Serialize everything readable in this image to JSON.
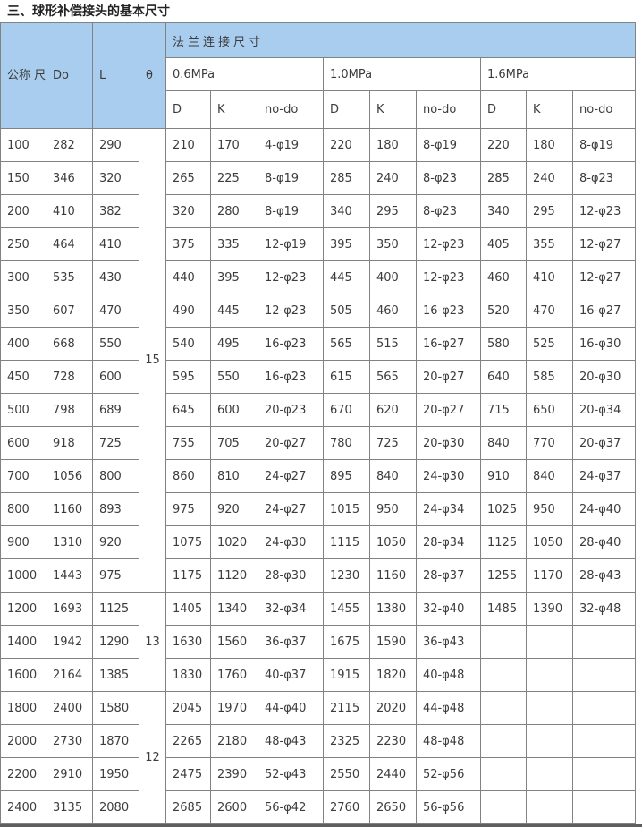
{
  "title": "三、球形补偿接头的基本尺寸",
  "colors": {
    "header_bg": "#a9cdee",
    "grid_border": "#828282",
    "bottom_rule": "#5e5e5e",
    "text": "#3c3c3c"
  },
  "table": {
    "corner_headers": [
      {
        "key": "dn",
        "label": "公称\n尺寸\nDN"
      },
      {
        "key": "do",
        "label": "Do"
      },
      {
        "key": "l",
        "label": "L"
      },
      {
        "key": "theta",
        "label": "θ"
      }
    ],
    "flange_header": "法兰连接尺寸",
    "pressure_groups": [
      "0.6MPa",
      "1.0MPa",
      "1.6MPa"
    ],
    "sub_headers": [
      "D",
      "K",
      "no-do"
    ],
    "theta_spans": [
      {
        "value": "15",
        "row_count": 14
      },
      {
        "value": "13",
        "row_count": 3
      },
      {
        "value": "12",
        "row_count": 4
      }
    ],
    "rows": [
      [
        "100",
        "282",
        "290",
        "210",
        "170",
        "4-φ19",
        "220",
        "180",
        "8-φ19",
        "220",
        "180",
        "8-φ19"
      ],
      [
        "150",
        "346",
        "320",
        "265",
        "225",
        "8-φ19",
        "285",
        "240",
        "8-φ23",
        "285",
        "240",
        "8-φ23"
      ],
      [
        "200",
        "410",
        "382",
        "320",
        "280",
        "8-φ19",
        "340",
        "295",
        "8-φ23",
        "340",
        "295",
        "12-φ23"
      ],
      [
        "250",
        "464",
        "410",
        "375",
        "335",
        "12-φ19",
        "395",
        "350",
        "12-φ23",
        "405",
        "355",
        "12-φ27"
      ],
      [
        "300",
        "535",
        "430",
        "440",
        "395",
        "12-φ23",
        "445",
        "400",
        "12-φ23",
        "460",
        "410",
        "12-φ27"
      ],
      [
        "350",
        "607",
        "470",
        "490",
        "445",
        "12-φ23",
        "505",
        "460",
        "16-φ23",
        "520",
        "470",
        "16-φ27"
      ],
      [
        "400",
        "668",
        "550",
        "540",
        "495",
        "16-φ23",
        "565",
        "515",
        "16-φ27",
        "580",
        "525",
        "16-φ30"
      ],
      [
        "450",
        "728",
        "600",
        "595",
        "550",
        "16-φ23",
        "615",
        "565",
        "20-φ27",
        "640",
        "585",
        "20-φ30"
      ],
      [
        "500",
        "798",
        "689",
        "645",
        "600",
        "20-φ23",
        "670",
        "620",
        "20-φ27",
        "715",
        "650",
        "20-φ34"
      ],
      [
        "600",
        "918",
        "725",
        "755",
        "705",
        "20-φ27",
        "780",
        "725",
        "20-φ30",
        "840",
        "770",
        "20-φ37"
      ],
      [
        "700",
        "1056",
        "800",
        "860",
        "810",
        "24-φ27",
        "895",
        "840",
        "24-φ30",
        "910",
        "840",
        "24-φ37"
      ],
      [
        "800",
        "1160",
        "893",
        "975",
        "920",
        "24-φ27",
        "1015",
        "950",
        "24-φ34",
        "1025",
        "950",
        "24-φ40"
      ],
      [
        "900",
        "1310",
        "920",
        "1075",
        "1020",
        "24-φ30",
        "1115",
        "1050",
        "28-φ34",
        "1125",
        "1050",
        "28-φ40"
      ],
      [
        "1000",
        "1443",
        "975",
        "1175",
        "1120",
        "28-φ30",
        "1230",
        "1160",
        "28-φ37",
        "1255",
        "1170",
        "28-φ43"
      ],
      [
        "1200",
        "1693",
        "1125",
        "1405",
        "1340",
        "32-φ34",
        "1455",
        "1380",
        "32-φ40",
        "1485",
        "1390",
        "32-φ48"
      ],
      [
        "1400",
        "1942",
        "1290",
        "1630",
        "1560",
        "36-φ37",
        "1675",
        "1590",
        "36-φ43",
        "",
        "",
        ""
      ],
      [
        "1600",
        "2164",
        "1385",
        "1830",
        "1760",
        "40-φ37",
        "1915",
        "1820",
        "40-φ48",
        "",
        "",
        ""
      ],
      [
        "1800",
        "2400",
        "1580",
        "2045",
        "1970",
        "44-φ40",
        "2115",
        "2020",
        "44-φ48",
        "",
        "",
        ""
      ],
      [
        "2000",
        "2730",
        "1870",
        "2265",
        "2180",
        "48-φ43",
        "2325",
        "2230",
        "48-φ48",
        "",
        "",
        ""
      ],
      [
        "2200",
        "2910",
        "1950",
        "2475",
        "2390",
        "52-φ43",
        "2550",
        "2440",
        "52-φ56",
        "",
        "",
        ""
      ],
      [
        "2400",
        "3135",
        "2080",
        "2685",
        "2600",
        "56-φ42",
        "2760",
        "2650",
        "56-φ56",
        "",
        "",
        ""
      ]
    ]
  }
}
